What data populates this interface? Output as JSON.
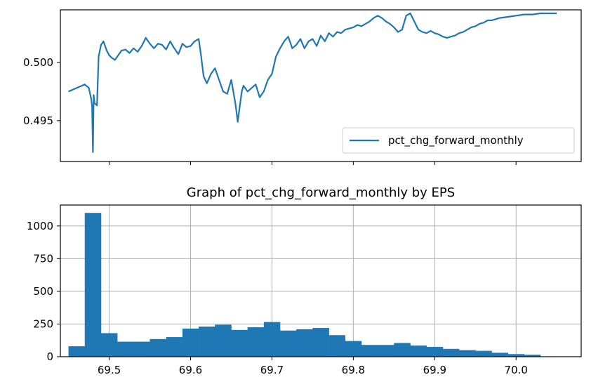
{
  "chart_data": [
    {
      "type": "line",
      "title": "",
      "xlabel": "",
      "ylabel": "",
      "ylim": [
        0.4915,
        0.5045
      ],
      "xlim": [
        69.44,
        70.08
      ],
      "yticks": [
        0.495,
        0.5
      ],
      "ytick_labels": [
        "0.495",
        "0.500"
      ],
      "xticks": [
        69.5,
        69.6,
        69.7,
        69.8,
        69.9,
        70.0
      ],
      "xtick_labels": [],
      "grid": false,
      "legend_position": "lower right",
      "color": "#1f77b4",
      "series": [
        {
          "name": "pct_chg_forward_monthly",
          "x": [
            69.45,
            69.46,
            69.47,
            69.475,
            69.478,
            69.479,
            69.48,
            69.481,
            69.482,
            69.485,
            69.487,
            69.49,
            69.493,
            69.497,
            69.5,
            69.503,
            69.507,
            69.51,
            69.515,
            69.52,
            69.525,
            69.53,
            69.535,
            69.54,
            69.545,
            69.55,
            69.555,
            69.56,
            69.565,
            69.57,
            69.575,
            69.58,
            69.585,
            69.59,
            69.595,
            69.6,
            69.605,
            69.61,
            69.613,
            69.616,
            69.62,
            69.625,
            69.63,
            69.635,
            69.64,
            69.645,
            69.65,
            69.655,
            69.658,
            69.66,
            69.663,
            69.665,
            69.67,
            69.675,
            69.68,
            69.685,
            69.69,
            69.695,
            69.7,
            69.705,
            69.71,
            69.715,
            69.72,
            69.725,
            69.73,
            69.735,
            69.74,
            69.745,
            69.75,
            69.755,
            69.76,
            69.765,
            69.77,
            69.775,
            69.78,
            69.785,
            69.79,
            69.795,
            69.8,
            69.805,
            69.81,
            69.815,
            69.82,
            69.825,
            69.83,
            69.835,
            69.84,
            69.845,
            69.85,
            69.855,
            69.86,
            69.865,
            69.87,
            69.875,
            69.88,
            69.885,
            69.89,
            69.895,
            69.9,
            69.905,
            69.91,
            69.915,
            69.92,
            69.925,
            69.93,
            69.935,
            69.94,
            69.945,
            69.95,
            69.955,
            69.96,
            69.965,
            69.97,
            69.975,
            69.98,
            69.99,
            70.0,
            70.01,
            70.02,
            70.03,
            70.04,
            70.05
          ],
          "y": [
            0.4975,
            0.4978,
            0.4981,
            0.4978,
            0.4968,
            0.4962,
            0.4923,
            0.4972,
            0.4965,
            0.4963,
            0.5005,
            0.5015,
            0.5018,
            0.501,
            0.5006,
            0.5004,
            0.5002,
            0.5005,
            0.501,
            0.5011,
            0.5008,
            0.5012,
            0.5009,
            0.5014,
            0.5021,
            0.5016,
            0.5012,
            0.5016,
            0.5015,
            0.5011,
            0.5018,
            0.5012,
            0.5007,
            0.5016,
            0.5013,
            0.5014,
            0.5018,
            0.502,
            0.5005,
            0.4988,
            0.4982,
            0.499,
            0.4995,
            0.4985,
            0.4975,
            0.4973,
            0.4985,
            0.4965,
            0.4949,
            0.496,
            0.4975,
            0.498,
            0.4975,
            0.4978,
            0.4981,
            0.497,
            0.4975,
            0.4985,
            0.499,
            0.5005,
            0.5012,
            0.5018,
            0.5022,
            0.5012,
            0.5015,
            0.502,
            0.5012,
            0.5018,
            0.502,
            0.5014,
            0.5023,
            0.5018,
            0.5025,
            0.5022,
            0.5026,
            0.5025,
            0.5028,
            0.5029,
            0.503,
            0.5032,
            0.5031,
            0.5033,
            0.5035,
            0.5038,
            0.504,
            0.5038,
            0.5035,
            0.5033,
            0.503,
            0.5026,
            0.5028,
            0.504,
            0.5042,
            0.5035,
            0.5028,
            0.5026,
            0.5025,
            0.5027,
            0.5025,
            0.5024,
            0.5022,
            0.5021,
            0.5022,
            0.5023,
            0.5025,
            0.5026,
            0.5028,
            0.503,
            0.5031,
            0.5033,
            0.5034,
            0.5036,
            0.5036,
            0.5037,
            0.5038,
            0.5039,
            0.504,
            0.5041,
            0.5041,
            0.5042,
            0.5042,
            0.5042
          ]
        }
      ]
    },
    {
      "type": "bar",
      "title": "Graph of pct_chg_forward_monthly by EPS",
      "xlabel": "",
      "ylabel": "",
      "xlim": [
        69.44,
        70.08
      ],
      "ylim": [
        0,
        1160
      ],
      "xticks": [
        69.5,
        69.6,
        69.7,
        69.8,
        69.9,
        70.0
      ],
      "xtick_labels": [
        "69.5",
        "69.6",
        "69.7",
        "69.8",
        "69.9",
        "70.0"
      ],
      "yticks": [
        0,
        250,
        500,
        750,
        1000
      ],
      "ytick_labels": [
        "0",
        "250",
        "500",
        "750",
        "1000"
      ],
      "grid": true,
      "color": "#1f77b4",
      "bin_start": 69.45,
      "bin_width": 0.02,
      "values": [
        80,
        1100,
        180,
        115,
        115,
        135,
        150,
        215,
        230,
        245,
        205,
        225,
        265,
        200,
        210,
        220,
        165,
        120,
        90,
        90,
        105,
        85,
        75,
        60,
        50,
        45,
        30,
        20,
        15
      ]
    }
  ]
}
